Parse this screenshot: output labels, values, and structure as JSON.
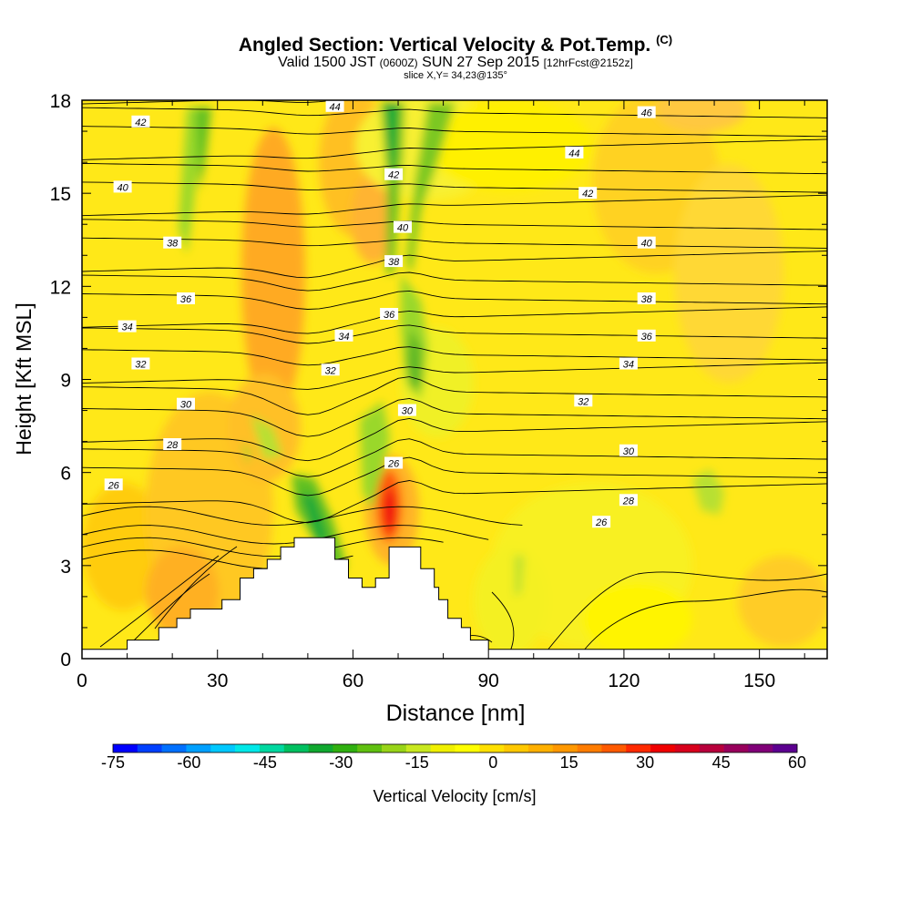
{
  "header": {
    "title": "Angled Section: Vertical Velocity & Pot.Temp.",
    "title_tag": "(C)",
    "subtitle_valid": "Valid 1500 JST",
    "subtitle_utc": "(0600Z)",
    "subtitle_date": "SUN 27 Sep 2015",
    "subtitle_fcst": "[12hrFcst@2152z]",
    "slice": "slice X,Y= 34,23@135°"
  },
  "chart_data": {
    "type": "heatmap",
    "xlabel": "Distance [nm]",
    "ylabel": "Height [Kft MSL]",
    "xlim": [
      0,
      165
    ],
    "ylim": [
      0,
      18
    ],
    "xticks": [
      0,
      30,
      60,
      90,
      120,
      150
    ],
    "xtick_labels": [
      "0",
      "30",
      "60",
      "90",
      "120",
      "150"
    ],
    "yticks": [
      0,
      3,
      6,
      9,
      12,
      15,
      18
    ],
    "ytick_labels": [
      "0",
      "3",
      "6",
      "9",
      "12",
      "15",
      "18"
    ],
    "grid": false,
    "colorbar": {
      "label": "Vertical Velocity [cm/s]",
      "tick_labels": [
        "-75",
        "-60",
        "-45",
        "-30",
        "-15",
        "0",
        "15",
        "30",
        "45",
        "60"
      ],
      "tick_values": [
        -75,
        -60,
        -45,
        -30,
        -15,
        0,
        15,
        30,
        45,
        60
      ],
      "colors": [
        "#0000ff",
        "#0040ff",
        "#0070ff",
        "#00a0ff",
        "#00c8ff",
        "#00e8e8",
        "#00d8a0",
        "#00c060",
        "#10a830",
        "#30b010",
        "#60c010",
        "#98d418",
        "#c8e820",
        "#f0f000",
        "#ffff00",
        "#ffe000",
        "#ffc800",
        "#ffb000",
        "#ff9800",
        "#ff7c00",
        "#ff5a00",
        "#ff2a00",
        "#f00000",
        "#d8001c",
        "#b8003c",
        "#98005c",
        "#800078",
        "#5c0090"
      ]
    },
    "terrain": [
      [
        0,
        0.3
      ],
      [
        10,
        0.3
      ],
      [
        10,
        0.6
      ],
      [
        17,
        0.6
      ],
      [
        17,
        1.0
      ],
      [
        21,
        1.0
      ],
      [
        21,
        1.3
      ],
      [
        24,
        1.3
      ],
      [
        24,
        1.6
      ],
      [
        31,
        1.6
      ],
      [
        31,
        1.9
      ],
      [
        35,
        1.9
      ],
      [
        35,
        2.6
      ],
      [
        38,
        2.6
      ],
      [
        38,
        2.9
      ],
      [
        41,
        2.9
      ],
      [
        41,
        3.2
      ],
      [
        44,
        3.2
      ],
      [
        44,
        3.6
      ],
      [
        47,
        3.6
      ],
      [
        47,
        3.9
      ],
      [
        56,
        3.9
      ],
      [
        56,
        3.2
      ],
      [
        59,
        3.2
      ],
      [
        59,
        2.6
      ],
      [
        62,
        2.6
      ],
      [
        62,
        2.3
      ],
      [
        65,
        2.3
      ],
      [
        65,
        2.6
      ],
      [
        68,
        2.6
      ],
      [
        68,
        3.6
      ],
      [
        75,
        3.6
      ],
      [
        75,
        2.9
      ],
      [
        78,
        2.9
      ],
      [
        78,
        2.3
      ],
      [
        79,
        2.3
      ],
      [
        79,
        1.9
      ],
      [
        81,
        1.9
      ],
      [
        81,
        1.3
      ],
      [
        84,
        1.3
      ],
      [
        84,
        1.0
      ],
      [
        86,
        1.0
      ],
      [
        86,
        0.6
      ],
      [
        90,
        0.6
      ],
      [
        90,
        0.3
      ],
      [
        165,
        0.3
      ]
    ],
    "theta_contour_labels": [
      {
        "value": "26",
        "x": 7,
        "y": 5.6
      },
      {
        "value": "28",
        "x": 20,
        "y": 6.9
      },
      {
        "value": "30",
        "x": 23,
        "y": 8.2
      },
      {
        "value": "32",
        "x": 13,
        "y": 9.5
      },
      {
        "value": "34",
        "x": 10,
        "y": 10.7
      },
      {
        "value": "36",
        "x": 23,
        "y": 11.6
      },
      {
        "value": "38",
        "x": 20,
        "y": 13.4
      },
      {
        "value": "40",
        "x": 9,
        "y": 15.2
      },
      {
        "value": "42",
        "x": 13,
        "y": 17.3
      },
      {
        "value": "44",
        "x": 56,
        "y": 17.8
      },
      {
        "value": "34",
        "x": 58,
        "y": 10.4
      },
      {
        "value": "32",
        "x": 55,
        "y": 9.3
      },
      {
        "value": "36",
        "x": 68,
        "y": 11.1
      },
      {
        "value": "38",
        "x": 69,
        "y": 12.8
      },
      {
        "value": "40",
        "x": 71,
        "y": 13.9
      },
      {
        "value": "42",
        "x": 69,
        "y": 15.6
      },
      {
        "value": "30",
        "x": 72,
        "y": 8.0
      },
      {
        "value": "26",
        "x": 69,
        "y": 6.3
      },
      {
        "value": "46",
        "x": 125,
        "y": 17.6
      },
      {
        "value": "44",
        "x": 109,
        "y": 16.3
      },
      {
        "value": "42",
        "x": 112,
        "y": 15.0
      },
      {
        "value": "40",
        "x": 125,
        "y": 13.4
      },
      {
        "value": "38",
        "x": 125,
        "y": 11.6
      },
      {
        "value": "36",
        "x": 125,
        "y": 10.4
      },
      {
        "value": "34",
        "x": 121,
        "y": 9.5
      },
      {
        "value": "32",
        "x": 111,
        "y": 8.3
      },
      {
        "value": "30",
        "x": 121,
        "y": 6.7
      },
      {
        "value": "28",
        "x": 121,
        "y": 5.1
      },
      {
        "value": "26",
        "x": 115,
        "y": 4.4
      }
    ]
  }
}
